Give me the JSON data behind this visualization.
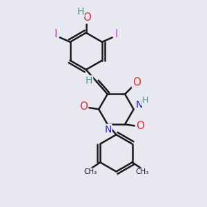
{
  "bg_color": "#e8e8f0",
  "bond_color": "#1a1a1a",
  "bond_width": 1.8,
  "atom_colors": {
    "C": "#1a1a1a",
    "H": "#4a9a8a",
    "O": "#e03030",
    "N": "#2020d0",
    "I": "#c040c0"
  },
  "font_size": 9
}
